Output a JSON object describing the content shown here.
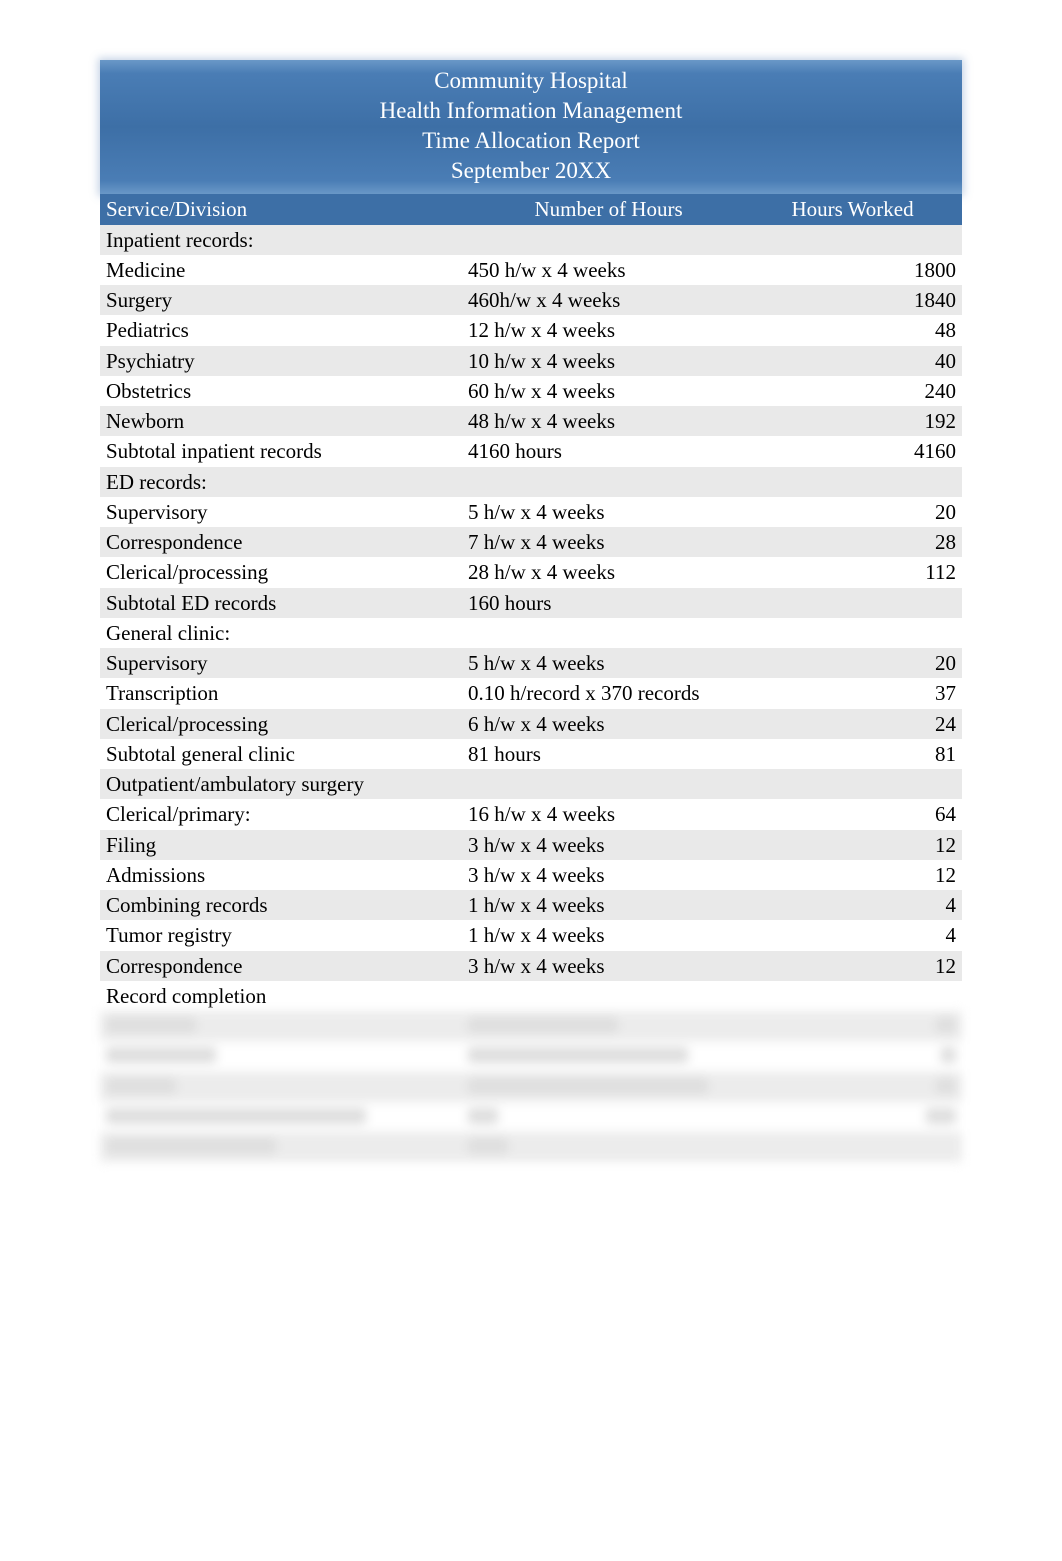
{
  "title": {
    "line1": "Community Hospital",
    "line2": "Health Information Management",
    "line3": "Time Allocation Report",
    "line4": "September 20XX"
  },
  "columns": {
    "c1": "Service/Division",
    "c2": "Number of Hours",
    "c3": "Hours Worked"
  },
  "colors": {
    "header_bg": "#3d6fa6",
    "header_text": "#ffffff",
    "band_bg": "#e9e9e9",
    "body_text": "#000000"
  },
  "rows": [
    {
      "svc": "Inpatient records:",
      "num": "",
      "hrs": "",
      "indent": false,
      "band": true
    },
    {
      "svc": "Medicine",
      "num": "450 h/w x 4 weeks",
      "hrs": "1800",
      "indent": true,
      "band": false
    },
    {
      "svc": "Surgery",
      "num": "460h/w x 4 weeks",
      "hrs": "1840",
      "indent": true,
      "band": true
    },
    {
      "svc": "Pediatrics",
      "num": "12 h/w x 4 weeks",
      "hrs": "48",
      "indent": true,
      "band": false
    },
    {
      "svc": "Psychiatry",
      "num": "10 h/w x 4 weeks",
      "hrs": "40",
      "indent": true,
      "band": true
    },
    {
      "svc": "Obstetrics",
      "num": "60 h/w x 4 weeks",
      "hrs": "240",
      "indent": true,
      "band": false
    },
    {
      "svc": "Newborn",
      "num": "48 h/w x 4 weeks",
      "hrs": "192",
      "indent": true,
      "band": true
    },
    {
      "svc": "Subtotal inpatient records",
      "num": "4160 hours",
      "hrs": "4160",
      "indent": false,
      "band": false
    },
    {
      "svc": "ED records:",
      "num": "",
      "hrs": "",
      "indent": false,
      "band": true
    },
    {
      "svc": "Supervisory",
      "num": "5 h/w x 4 weeks",
      "hrs": "20",
      "indent": true,
      "band": false
    },
    {
      "svc": "Correspondence",
      "num": "7 h/w x 4 weeks",
      "hrs": "28",
      "indent": true,
      "band": true
    },
    {
      "svc": "Clerical/processing",
      "num": "28 h/w x 4 weeks",
      "hrs": "112",
      "indent": true,
      "band": false
    },
    {
      "svc": "Subtotal ED records",
      "num": "160 hours",
      "hrs": "",
      "indent": false,
      "band": true
    },
    {
      "svc": "General clinic:",
      "num": "",
      "hrs": "",
      "indent": false,
      "band": false
    },
    {
      "svc": "Supervisory",
      "num": "5 h/w x 4 weeks",
      "hrs": "20",
      "indent": true,
      "band": true
    },
    {
      "svc": "Transcription",
      "num": "0.10 h/record x 370 records",
      "hrs": "37",
      "indent": true,
      "band": false
    },
    {
      "svc": "Clerical/processing",
      "num": "6 h/w x 4 weeks",
      "hrs": "24",
      "indent": true,
      "band": true
    },
    {
      "svc": "Subtotal general clinic",
      "num": "81 hours",
      "hrs": "81",
      "indent": false,
      "band": false
    },
    {
      "svc": "Outpatient/ambulatory surgery",
      "num": "",
      "hrs": "",
      "indent": false,
      "band": true
    },
    {
      "svc": "Clerical/primary:",
      "num": "16 h/w x 4 weeks",
      "hrs": "64",
      "indent": false,
      "band": false
    },
    {
      "svc": "Filing",
      "num": "3 h/w x 4 weeks",
      "hrs": "12",
      "indent": true,
      "band": true
    },
    {
      "svc": "Admissions",
      "num": "3 h/w x 4 weeks",
      "hrs": "12",
      "indent": true,
      "band": false
    },
    {
      "svc": "Combining records",
      "num": "1 h/w x 4 weeks",
      "hrs": "4",
      "indent": true,
      "band": true
    },
    {
      "svc": "Tumor registry",
      "num": "1 h/w x 4 weeks",
      "hrs": "4",
      "indent": true,
      "band": false
    },
    {
      "svc": "Correspondence",
      "num": "3 h/w x 4 weeks",
      "hrs": "12",
      "indent": true,
      "band": true
    },
    {
      "svc": "Record completion",
      "num": "",
      "hrs": "",
      "indent": true,
      "band": false
    }
  ],
  "blur_rows": [
    {
      "w1": 90,
      "w2": 150,
      "w3": 20,
      "indent": true,
      "band": true
    },
    {
      "w1": 110,
      "w2": 220,
      "w3": 15,
      "indent": true,
      "band": false
    },
    {
      "w1": 70,
      "w2": 240,
      "w3": 20,
      "indent": true,
      "band": true
    },
    {
      "w1": 260,
      "w2": 30,
      "w3": 30,
      "indent": false,
      "band": false
    },
    {
      "w1": 170,
      "w2": 40,
      "w3": 0,
      "indent": false,
      "band": true
    }
  ]
}
